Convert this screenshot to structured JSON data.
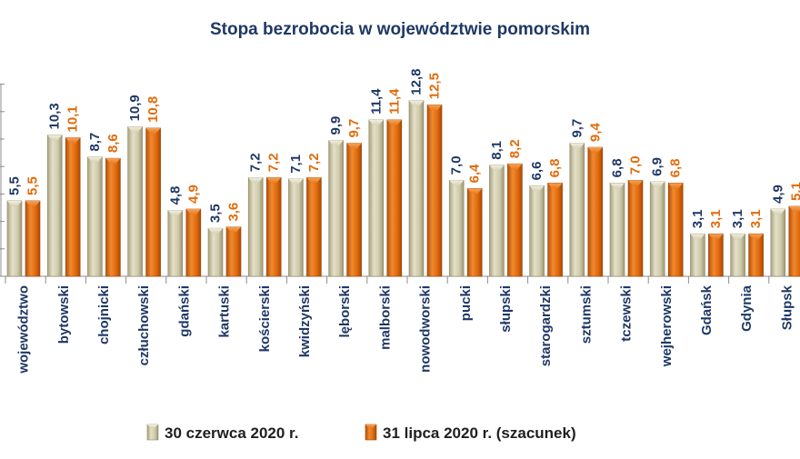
{
  "chart_data": {
    "type": "bar",
    "title": "Stopa bezrobocia w województwie pomorskim",
    "xlabel": "",
    "ylabel": "",
    "ylim": [
      0,
      14
    ],
    "grid": false,
    "legend_position": "bottom",
    "categories": [
      "województwo",
      "bytowski",
      "chojnicki",
      "człuchowski",
      "gdański",
      "kartuski",
      "kościerski",
      "kwidzyński",
      "lęborski",
      "malborski",
      "nowodworski",
      "pucki",
      "słupski",
      "starogardzki",
      "sztumski",
      "tczewski",
      "wejherowski",
      "Gdańsk",
      "Gdynia",
      "Słupsk"
    ],
    "series": [
      {
        "name": "30 czerwca 2020 r.",
        "color": "#c9c4a4",
        "values": [
          5.5,
          10.3,
          8.7,
          10.9,
          4.8,
          3.5,
          7.2,
          7.1,
          9.9,
          11.4,
          12.8,
          7.0,
          8.1,
          6.6,
          9.7,
          6.8,
          6.9,
          3.1,
          3.1,
          4.9
        ],
        "labels": [
          "5,5",
          "10,3",
          "8,7",
          "10,9",
          "4,8",
          "3,5",
          "7,2",
          "7,1",
          "9,9",
          "11,4",
          "12,8",
          "7,0",
          "8,1",
          "6,6",
          "9,7",
          "6,8",
          "6,9",
          "3,1",
          "3,1",
          "4,9"
        ]
      },
      {
        "name": "31 lipca 2020 r. (szacunek)",
        "color": "#e26b0a",
        "values": [
          5.5,
          10.1,
          8.6,
          10.8,
          4.9,
          3.6,
          7.2,
          7.2,
          9.7,
          11.4,
          12.5,
          6.4,
          8.2,
          6.8,
          9.4,
          7.0,
          6.8,
          3.1,
          3.1,
          5.1
        ],
        "labels": [
          "5,5",
          "10,1",
          "8,6",
          "10,8",
          "4,9",
          "3,6",
          "7,2",
          "7,2",
          "9,7",
          "11,4",
          "12,5",
          "6,4",
          "8,2",
          "6,8",
          "9,4",
          "7,0",
          "6,8",
          "3,1",
          "3,1",
          "5,1"
        ]
      }
    ]
  }
}
